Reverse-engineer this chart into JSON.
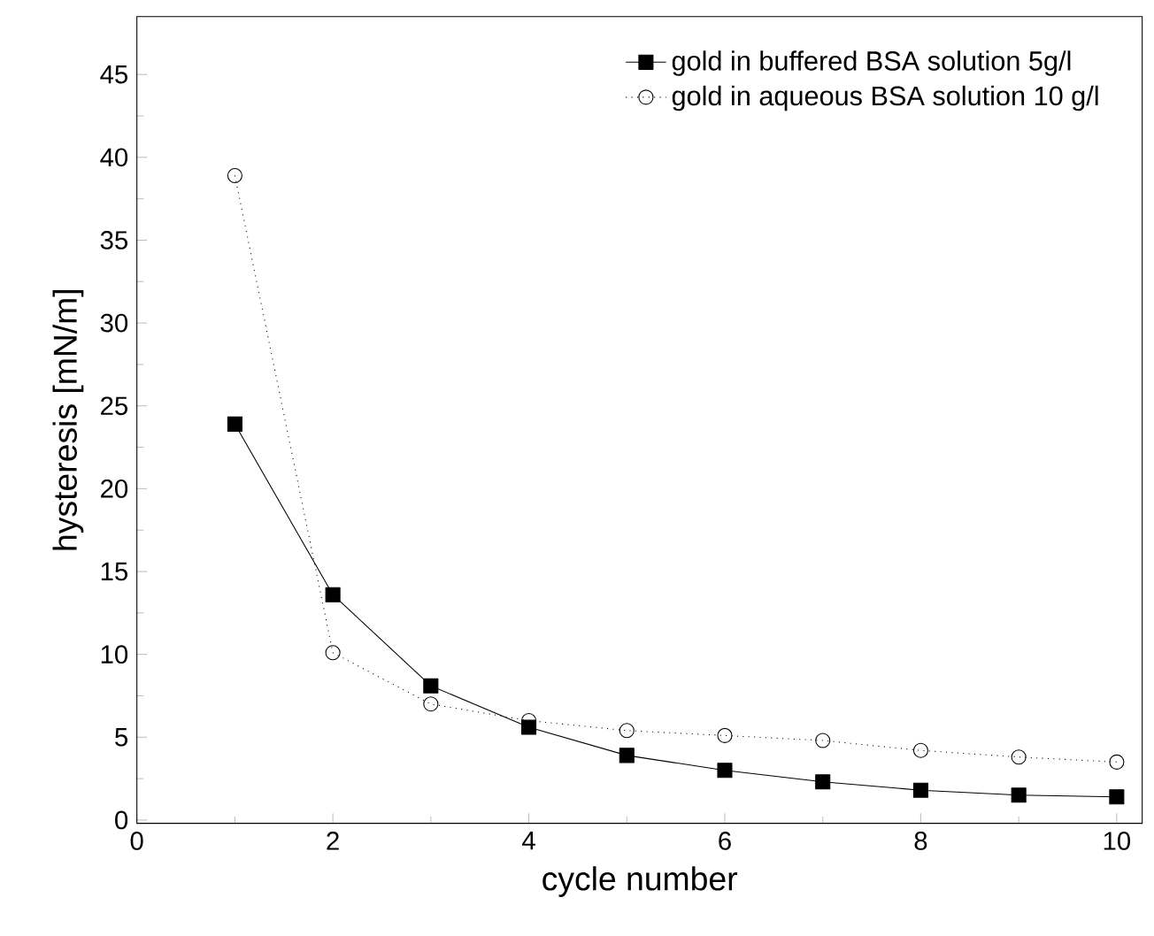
{
  "chart_data": {
    "type": "line",
    "xlabel": "cycle number",
    "ylabel": "hysteresis [mN/m]",
    "x": [
      1,
      2,
      3,
      4,
      5,
      6,
      7,
      8,
      9,
      10
    ],
    "series": [
      {
        "name": "gold in buffered BSA solution 5g/l",
        "color": "#000000",
        "marker": "square",
        "line_style": "solid",
        "values": [
          23.9,
          13.6,
          8.1,
          5.6,
          3.9,
          3.0,
          2.3,
          1.8,
          1.5,
          1.4
        ]
      },
      {
        "name": "gold in aqueous BSA solution 10 g/l",
        "color": "#000000",
        "marker": "circle",
        "line_style": "dotted",
        "values": [
          38.9,
          10.1,
          7.0,
          6.0,
          5.4,
          5.1,
          4.8,
          4.2,
          3.8,
          3.5
        ]
      }
    ],
    "xlim": [
      0,
      10.26
    ],
    "ylim": [
      -0.2,
      48.5
    ],
    "xticks": [
      0,
      2,
      4,
      6,
      8,
      10
    ],
    "yticks": [
      0,
      5,
      10,
      15,
      20,
      25,
      30,
      35,
      40,
      45
    ],
    "legend": "top right",
    "grid": false
  }
}
